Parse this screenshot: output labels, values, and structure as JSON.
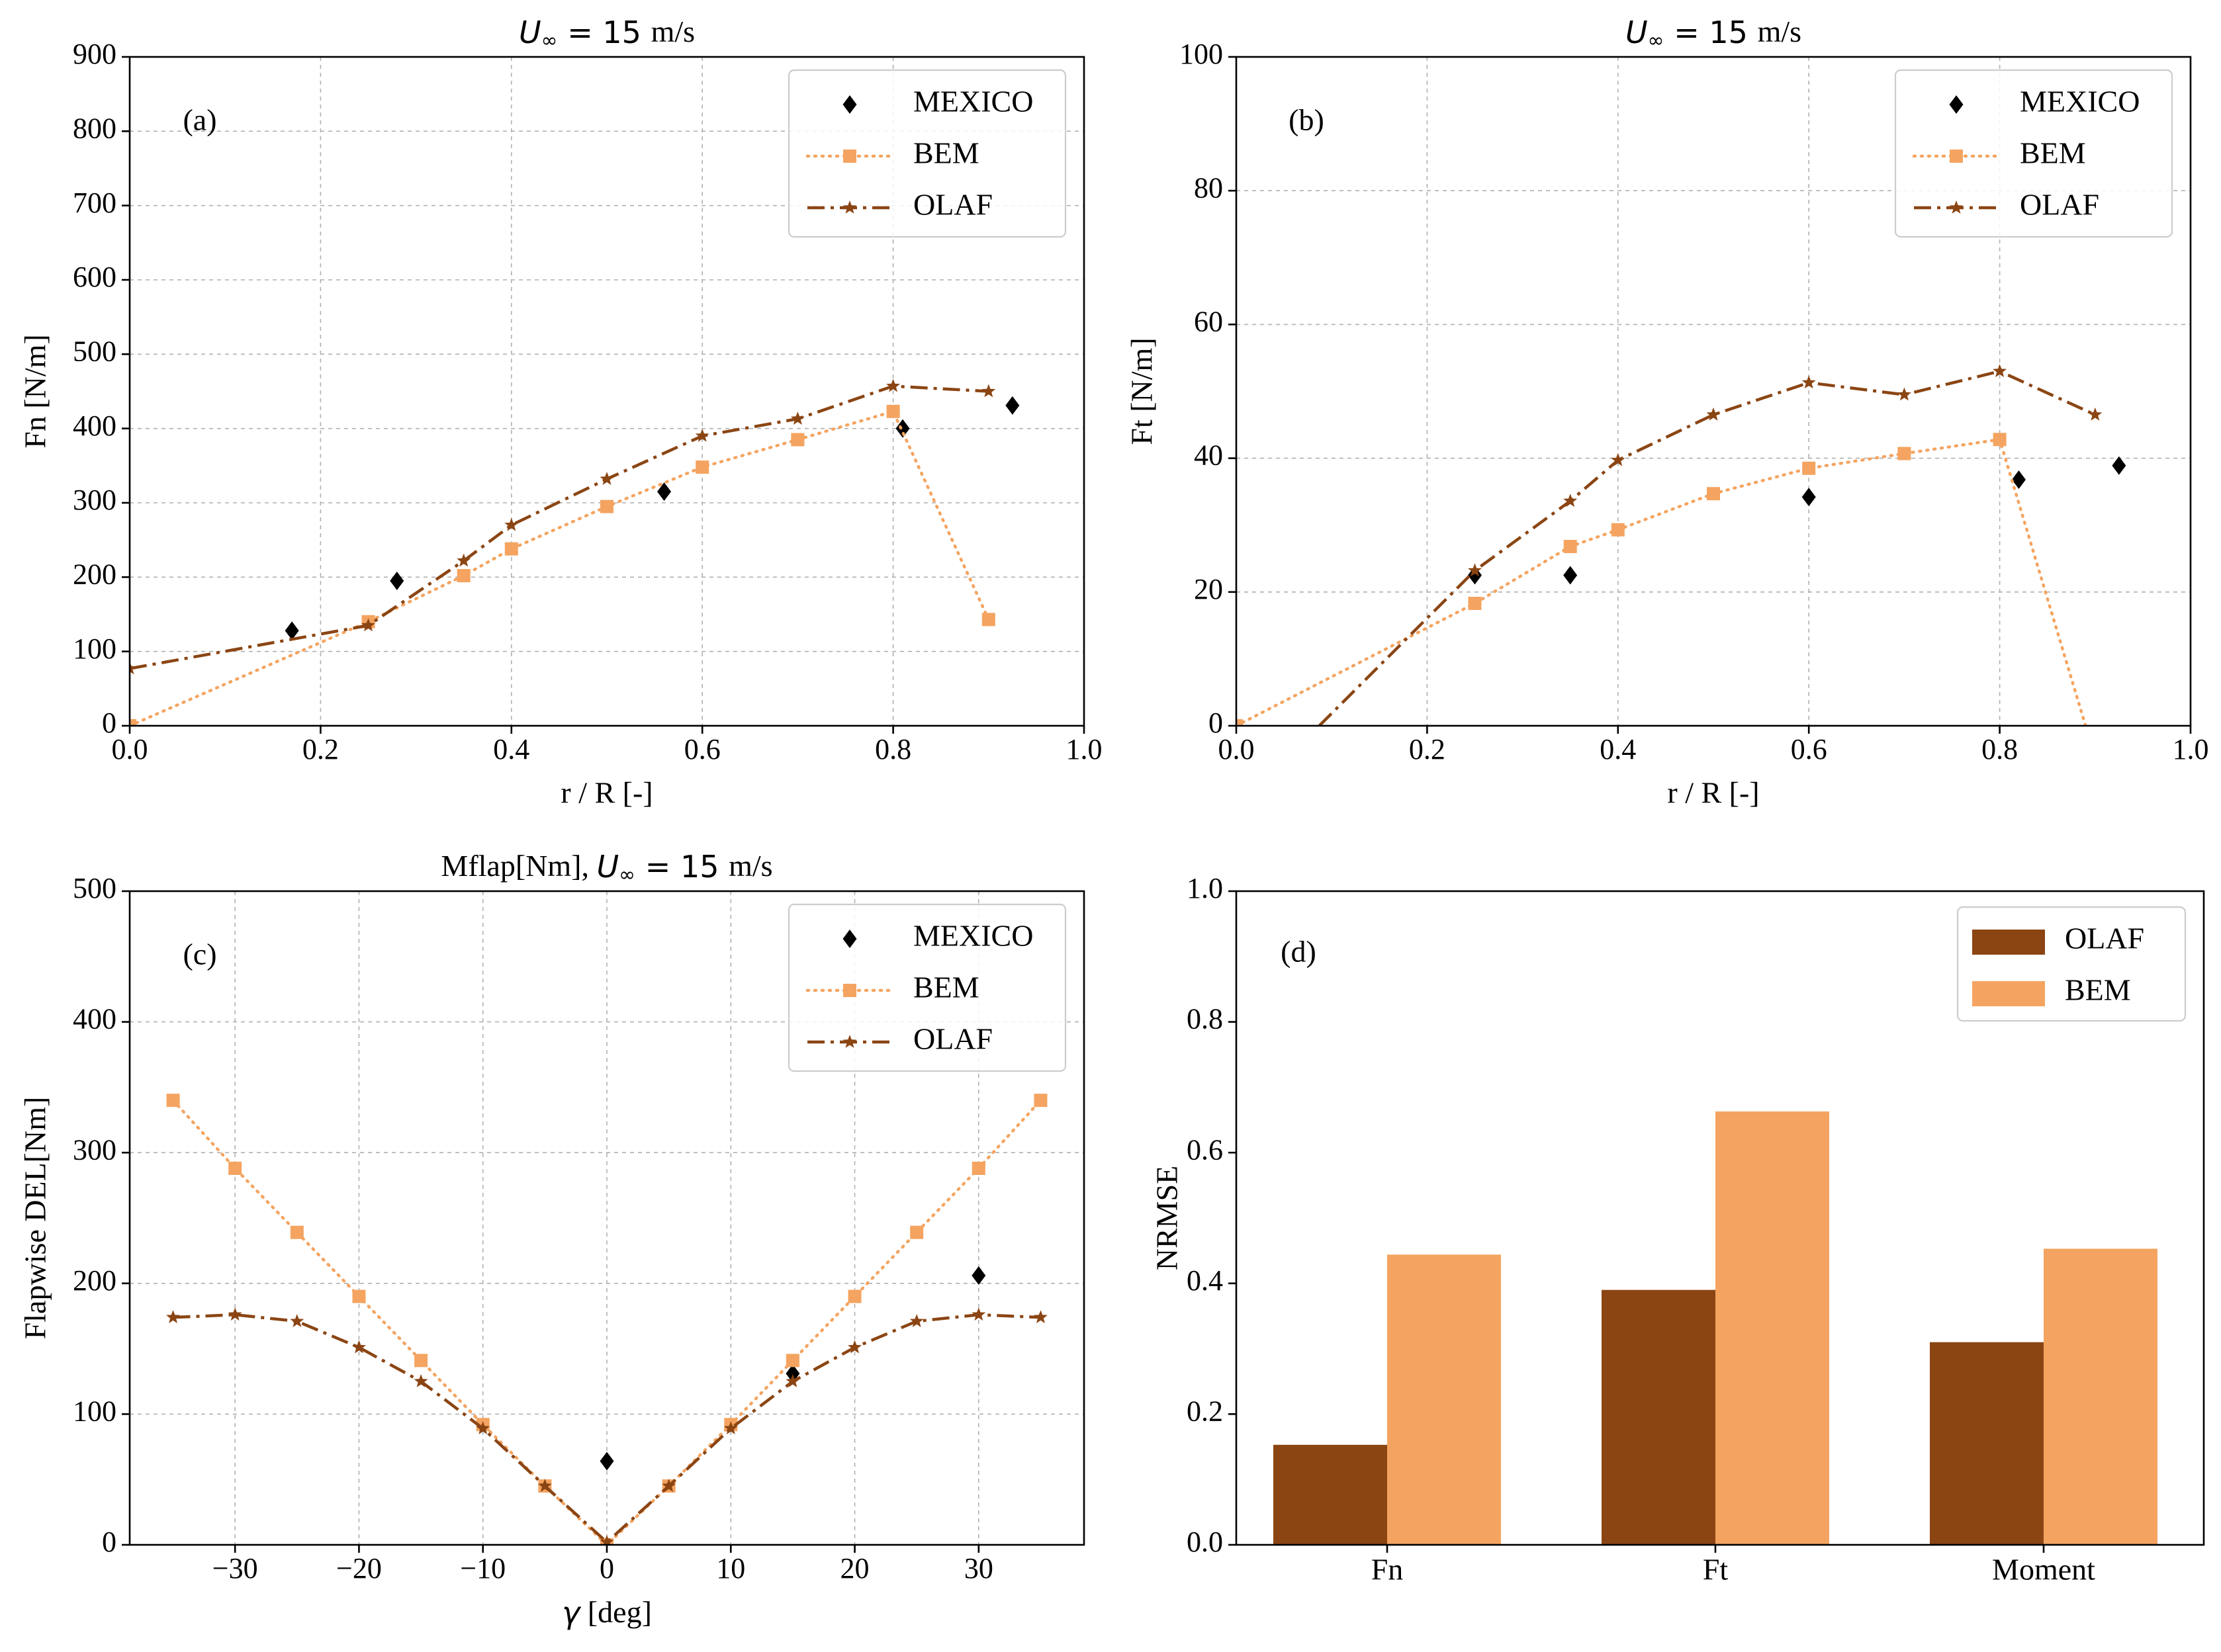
{
  "colors": {
    "mexico": "#000000",
    "bem": "#F4A460",
    "olaf": "#8B4513"
  },
  "chart_data": [
    {
      "id": "a",
      "type": "line",
      "title": "U∞ = 15 m/s",
      "title_parts": [
        "U",
        "∞",
        " = 15 ",
        "m/s"
      ],
      "panel_label": "(a)",
      "xlabel": "r / R [-]",
      "ylabel": "Fn [N/m]",
      "xlim": [
        0.0,
        1.0
      ],
      "ylim": [
        0,
        900
      ],
      "xticks": [
        0.0,
        0.2,
        0.4,
        0.6,
        0.8,
        1.0
      ],
      "xtick_labels": [
        "0.0",
        "0.2",
        "0.4",
        "0.6",
        "0.8",
        "1.0"
      ],
      "yticks": [
        0,
        100,
        200,
        300,
        400,
        500,
        600,
        700,
        800,
        900
      ],
      "ytick_labels": [
        "0",
        "100",
        "200",
        "300",
        "400",
        "500",
        "600",
        "700",
        "800",
        "900"
      ],
      "grid": true,
      "legend_position": "top-right",
      "series": [
        {
          "name": "MEXICO",
          "style": "marker-diamond",
          "x": [
            0.17,
            0.28,
            0.56,
            0.81,
            0.925
          ],
          "y": [
            128,
            195,
            315,
            400,
            431
          ]
        },
        {
          "name": "BEM",
          "style": "dotted-square",
          "x": [
            0.0,
            0.25,
            0.35,
            0.4,
            0.5,
            0.6,
            0.7,
            0.8,
            0.9
          ],
          "y": [
            0,
            140,
            202,
            238,
            295,
            348,
            385,
            423,
            143
          ]
        },
        {
          "name": "OLAF",
          "style": "dashdot-star",
          "x": [
            0.0,
            0.25,
            0.35,
            0.4,
            0.5,
            0.6,
            0.7,
            0.8,
            0.9
          ],
          "y": [
            77,
            135,
            222,
            270,
            332,
            390,
            413,
            457,
            450
          ]
        }
      ]
    },
    {
      "id": "b",
      "type": "line",
      "title": "U∞ = 15 m/s",
      "title_parts": [
        "U",
        "∞",
        " = 15 ",
        "m/s"
      ],
      "panel_label": "(b)",
      "xlabel": "r / R [-]",
      "ylabel": "Ft [N/m]",
      "xlim": [
        0.0,
        1.0
      ],
      "ylim": [
        0,
        100
      ],
      "xticks": [
        0.0,
        0.2,
        0.4,
        0.6,
        0.8,
        1.0
      ],
      "xtick_labels": [
        "0.0",
        "0.2",
        "0.4",
        "0.6",
        "0.8",
        "1.0"
      ],
      "yticks": [
        0,
        20,
        40,
        60,
        80,
        100
      ],
      "ytick_labels": [
        "0",
        "20",
        "40",
        "60",
        "80",
        "100"
      ],
      "grid": true,
      "legend_position": "top-right",
      "series": [
        {
          "name": "MEXICO",
          "style": "marker-diamond",
          "x": [
            0.25,
            0.35,
            0.6,
            0.82,
            0.925
          ],
          "y": [
            22.5,
            22.5,
            34.2,
            36.8,
            38.9
          ]
        },
        {
          "name": "BEM",
          "style": "dotted-square",
          "x": [
            0.0,
            0.25,
            0.35,
            0.4,
            0.5,
            0.6,
            0.7,
            0.8,
            0.89
          ],
          "y": [
            0,
            18.3,
            26.8,
            29.3,
            34.7,
            38.5,
            40.7,
            42.8,
            0
          ],
          "marker_mask": [
            1,
            1,
            1,
            1,
            1,
            1,
            1,
            1,
            0
          ]
        },
        {
          "name": "OLAF",
          "style": "dashdot-star",
          "x": [
            0.087,
            0.25,
            0.35,
            0.4,
            0.5,
            0.6,
            0.7,
            0.8,
            0.9
          ],
          "y": [
            0,
            23.2,
            33.6,
            39.7,
            46.5,
            51.3,
            49.5,
            53.0,
            46.5
          ],
          "marker_mask": [
            0,
            1,
            1,
            1,
            1,
            1,
            1,
            1,
            1
          ]
        }
      ]
    },
    {
      "id": "c",
      "type": "line",
      "title": "Mflap[Nm], U∞ = 15 m/s",
      "title_parts": [
        "Mflap[Nm], ",
        "U",
        "∞",
        " = 15 ",
        "m/s"
      ],
      "panel_label": "(c)",
      "xlabel": "γ [deg]",
      "xlabel_parts": [
        "γ",
        " [deg]"
      ],
      "ylabel": "Flapwise DEL[Nm]",
      "xlim": [
        -38.5,
        38.5
      ],
      "ylim": [
        0,
        500
      ],
      "xticks": [
        -30,
        -20,
        -10,
        0,
        10,
        20,
        30
      ],
      "xtick_labels": [
        "−30",
        "−20",
        "−10",
        "0",
        "10",
        "20",
        "30"
      ],
      "yticks": [
        0,
        100,
        200,
        300,
        400,
        500
      ],
      "ytick_labels": [
        "0",
        "100",
        "200",
        "300",
        "400",
        "500"
      ],
      "grid": true,
      "legend_position": "top-right",
      "series": [
        {
          "name": "MEXICO",
          "style": "marker-diamond",
          "x": [
            0,
            15,
            30
          ],
          "y": [
            64,
            131,
            206
          ]
        },
        {
          "name": "BEM",
          "style": "dotted-square",
          "x": [
            -35,
            -30,
            -25,
            -20,
            -15,
            -10,
            -5,
            0,
            5,
            10,
            15,
            20,
            25,
            30,
            35
          ],
          "y": [
            340,
            288,
            239,
            190,
            141,
            92,
            45,
            0,
            45,
            92,
            141,
            190,
            239,
            288,
            340
          ]
        },
        {
          "name": "OLAF",
          "style": "dashdot-star",
          "x": [
            -35,
            -30,
            -25,
            -20,
            -15,
            -10,
            -5,
            0,
            5,
            10,
            15,
            20,
            25,
            30,
            35
          ],
          "y": [
            174,
            176,
            171,
            151,
            125,
            89,
            45,
            2,
            45,
            89,
            125,
            151,
            171,
            176,
            174
          ]
        }
      ]
    },
    {
      "id": "d",
      "type": "bar",
      "title": "",
      "panel_label": "(d)",
      "xlabel": "",
      "ylabel": "NRMSE",
      "categories": [
        "Fn",
        "Ft",
        "Moment"
      ],
      "ylim": [
        0.0,
        1.0
      ],
      "yticks": [
        0.0,
        0.2,
        0.4,
        0.6,
        0.8,
        1.0
      ],
      "ytick_labels": [
        "0.0",
        "0.2",
        "0.4",
        "0.6",
        "0.8",
        "1.0"
      ],
      "grid": false,
      "legend_position": "top-right",
      "series": [
        {
          "name": "OLAF",
          "values": [
            0.153,
            0.39,
            0.31
          ]
        },
        {
          "name": "BEM",
          "values": [
            0.444,
            0.663,
            0.453
          ]
        }
      ]
    }
  ]
}
